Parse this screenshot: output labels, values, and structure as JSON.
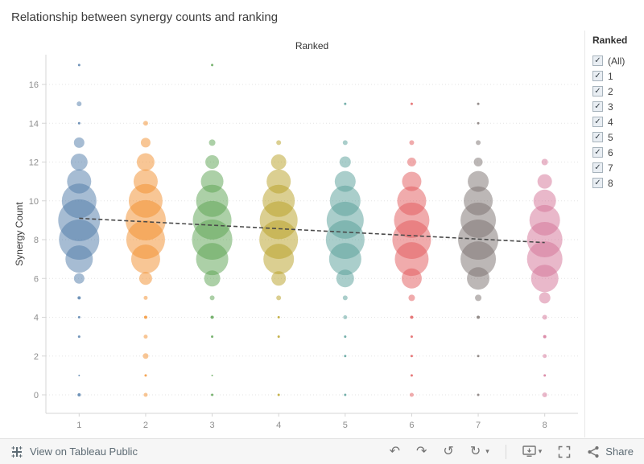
{
  "title": "Relationship between synergy counts and ranking",
  "chart": {
    "top_axis_label": "Ranked",
    "y_axis_label": "Synergy Count"
  },
  "chart_data": {
    "type": "scatter",
    "title": "Relationship between synergy counts and ranking",
    "xlabel": "Ranked",
    "ylabel": "Synergy Count",
    "x_categories": [
      "1",
      "2",
      "3",
      "4",
      "5",
      "6",
      "7",
      "8"
    ],
    "y_ticks": [
      0,
      2,
      4,
      6,
      8,
      10,
      12,
      14,
      16
    ],
    "ylim": [
      -1,
      17.5
    ],
    "grid": "dotted-horizontal",
    "legend_position": "none",
    "mark": "bubble (size = frequency of synergy count within rank, estimated px diameter)",
    "series": [
      {
        "name": "1",
        "color": "#4e79a7",
        "points": [
          {
            "y": 17,
            "size": 3
          },
          {
            "y": 15,
            "size": 6
          },
          {
            "y": 14,
            "size": 3
          },
          {
            "y": 13,
            "size": 13
          },
          {
            "y": 12,
            "size": 21
          },
          {
            "y": 11,
            "size": 30
          },
          {
            "y": 10,
            "size": 43
          },
          {
            "y": 9,
            "size": 52
          },
          {
            "y": 8,
            "size": 50
          },
          {
            "y": 7,
            "size": 34
          },
          {
            "y": 6,
            "size": 13
          },
          {
            "y": 5,
            "size": 4
          },
          {
            "y": 4,
            "size": 3
          },
          {
            "y": 3,
            "size": 3
          },
          {
            "y": 1,
            "size": 2
          },
          {
            "y": 0,
            "size": 4
          }
        ]
      },
      {
        "name": "2",
        "color": "#f28e2b",
        "points": [
          {
            "y": 14,
            "size": 6
          },
          {
            "y": 13,
            "size": 12
          },
          {
            "y": 12,
            "size": 22
          },
          {
            "y": 11,
            "size": 30
          },
          {
            "y": 10,
            "size": 42
          },
          {
            "y": 9,
            "size": 50
          },
          {
            "y": 8,
            "size": 48
          },
          {
            "y": 7,
            "size": 36
          },
          {
            "y": 6,
            "size": 16
          },
          {
            "y": 5,
            "size": 5
          },
          {
            "y": 4,
            "size": 4
          },
          {
            "y": 3,
            "size": 5
          },
          {
            "y": 2,
            "size": 7
          },
          {
            "y": 1,
            "size": 3
          },
          {
            "y": 0,
            "size": 5
          }
        ]
      },
      {
        "name": "3",
        "color": "#59a14f",
        "points": [
          {
            "y": 17,
            "size": 3
          },
          {
            "y": 13,
            "size": 8
          },
          {
            "y": 12,
            "size": 17
          },
          {
            "y": 11,
            "size": 28
          },
          {
            "y": 10,
            "size": 40
          },
          {
            "y": 9,
            "size": 48
          },
          {
            "y": 8,
            "size": 50
          },
          {
            "y": 7,
            "size": 40
          },
          {
            "y": 6,
            "size": 20
          },
          {
            "y": 5,
            "size": 6
          },
          {
            "y": 4,
            "size": 4
          },
          {
            "y": 3,
            "size": 3
          },
          {
            "y": 1,
            "size": 2
          },
          {
            "y": 0,
            "size": 3
          }
        ]
      },
      {
        "name": "4",
        "color": "#b8a023",
        "points": [
          {
            "y": 13,
            "size": 6
          },
          {
            "y": 12,
            "size": 19
          },
          {
            "y": 11,
            "size": 30
          },
          {
            "y": 10,
            "size": 40
          },
          {
            "y": 9,
            "size": 47
          },
          {
            "y": 8,
            "size": 48
          },
          {
            "y": 7,
            "size": 38
          },
          {
            "y": 6,
            "size": 18
          },
          {
            "y": 5,
            "size": 6
          },
          {
            "y": 4,
            "size": 3
          },
          {
            "y": 3,
            "size": 3
          },
          {
            "y": 0,
            "size": 3
          }
        ]
      },
      {
        "name": "5",
        "color": "#559e97",
        "points": [
          {
            "y": 15,
            "size": 3
          },
          {
            "y": 13,
            "size": 6
          },
          {
            "y": 12,
            "size": 14
          },
          {
            "y": 11,
            "size": 26
          },
          {
            "y": 10,
            "size": 38
          },
          {
            "y": 9,
            "size": 46
          },
          {
            "y": 8,
            "size": 48
          },
          {
            "y": 7,
            "size": 40
          },
          {
            "y": 6,
            "size": 22
          },
          {
            "y": 5,
            "size": 6
          },
          {
            "y": 4,
            "size": 5
          },
          {
            "y": 3,
            "size": 3
          },
          {
            "y": 2,
            "size": 3
          },
          {
            "y": 0,
            "size": 3
          }
        ]
      },
      {
        "name": "6",
        "color": "#e15759",
        "points": [
          {
            "y": 15,
            "size": 3
          },
          {
            "y": 13,
            "size": 6
          },
          {
            "y": 12,
            "size": 11
          },
          {
            "y": 11,
            "size": 24
          },
          {
            "y": 10,
            "size": 36
          },
          {
            "y": 9,
            "size": 44
          },
          {
            "y": 8,
            "size": 48
          },
          {
            "y": 7,
            "size": 42
          },
          {
            "y": 6,
            "size": 25
          },
          {
            "y": 5,
            "size": 8
          },
          {
            "y": 4,
            "size": 4
          },
          {
            "y": 3,
            "size": 3
          },
          {
            "y": 2,
            "size": 3
          },
          {
            "y": 1,
            "size": 3
          },
          {
            "y": 0,
            "size": 5
          }
        ]
      },
      {
        "name": "7",
        "color": "#79706e",
        "points": [
          {
            "y": 15,
            "size": 3
          },
          {
            "y": 14,
            "size": 3
          },
          {
            "y": 13,
            "size": 6
          },
          {
            "y": 12,
            "size": 11
          },
          {
            "y": 11,
            "size": 26
          },
          {
            "y": 10,
            "size": 36
          },
          {
            "y": 9,
            "size": 44
          },
          {
            "y": 8,
            "size": 50
          },
          {
            "y": 7,
            "size": 44
          },
          {
            "y": 6,
            "size": 28
          },
          {
            "y": 5,
            "size": 8
          },
          {
            "y": 4,
            "size": 4
          },
          {
            "y": 2,
            "size": 3
          },
          {
            "y": 0,
            "size": 3
          }
        ]
      },
      {
        "name": "8",
        "color": "#d37295",
        "points": [
          {
            "y": 12,
            "size": 8
          },
          {
            "y": 11,
            "size": 18
          },
          {
            "y": 10,
            "size": 28
          },
          {
            "y": 9,
            "size": 38
          },
          {
            "y": 8,
            "size": 44
          },
          {
            "y": 7,
            "size": 44
          },
          {
            "y": 6,
            "size": 34
          },
          {
            "y": 5,
            "size": 14
          },
          {
            "y": 4,
            "size": 6
          },
          {
            "y": 3,
            "size": 4
          },
          {
            "y": 2,
            "size": 5
          },
          {
            "y": 1,
            "size": 3
          },
          {
            "y": 0,
            "size": 6
          }
        ]
      }
    ],
    "trend_line": {
      "start": {
        "x": 1,
        "y": 9.1
      },
      "end": {
        "x": 8,
        "y": 7.85
      },
      "style": "dashed",
      "color": "#4a4a4a"
    }
  },
  "filter_panel": {
    "title": "Ranked",
    "check_glyph": "✓",
    "items": [
      {
        "label": "(All)",
        "checked": true
      },
      {
        "label": "1",
        "checked": true
      },
      {
        "label": "2",
        "checked": true
      },
      {
        "label": "3",
        "checked": true
      },
      {
        "label": "4",
        "checked": true
      },
      {
        "label": "5",
        "checked": true
      },
      {
        "label": "6",
        "checked": true
      },
      {
        "label": "7",
        "checked": true
      },
      {
        "label": "8",
        "checked": true
      }
    ]
  },
  "toolbar": {
    "view_link": "View on Tableau Public",
    "share_label": "Share",
    "caret_glyph": "▾",
    "icons": [
      {
        "name": "undo",
        "glyph": "↶"
      },
      {
        "name": "redo",
        "glyph": "↷"
      },
      {
        "name": "replay",
        "glyph": "↺"
      },
      {
        "name": "refresh",
        "glyph": "↻"
      }
    ]
  }
}
